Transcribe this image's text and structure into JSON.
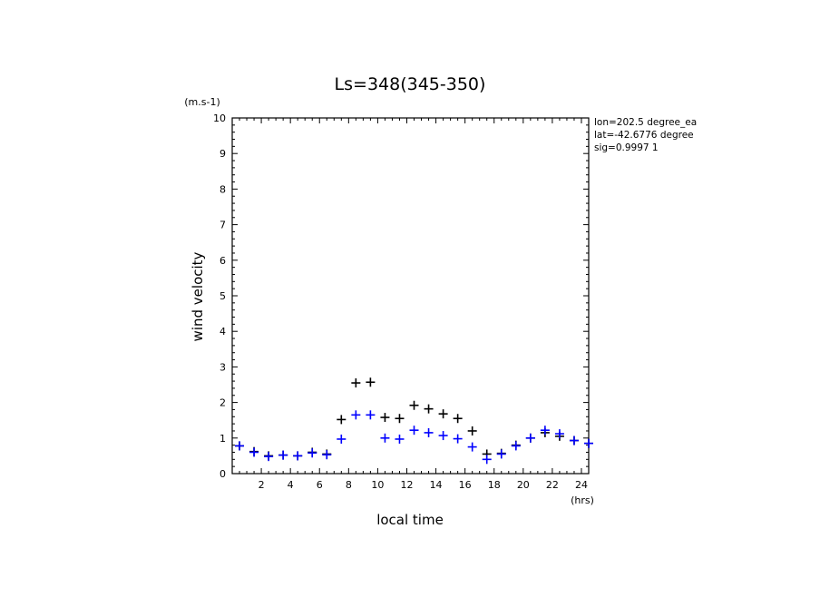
{
  "chart_data": {
    "type": "scatter",
    "title": "Ls=348(345-350)",
    "xlabel": "local time",
    "ylabel": "wind velocity",
    "x_unit": "(hrs)",
    "y_unit": "(m.s-1)",
    "xlim": [
      0,
      24.5
    ],
    "ylim": [
      0,
      10
    ],
    "x_ticks": [
      2,
      4,
      6,
      8,
      10,
      12,
      14,
      16,
      18,
      20,
      22,
      24
    ],
    "y_ticks": [
      0,
      1,
      2,
      3,
      4,
      5,
      6,
      7,
      8,
      9,
      10
    ],
    "annotations": [
      "lon=202.5 degree_ea",
      "lat=-42.6776 degree",
      "sig=0.9997 1"
    ],
    "series": [
      {
        "color": "#000000",
        "marker": "plus",
        "x": [
          0.5,
          1.5,
          2.5,
          3.5,
          4.5,
          5.5,
          6.5,
          7.5,
          8.5,
          9.5,
          10.5,
          11.5,
          12.5,
          13.5,
          14.5,
          15.5,
          16.5,
          17.5,
          18.5,
          19.5,
          20.5,
          21.5,
          22.5,
          23.5,
          24.5
        ],
        "y": [
          0.78,
          0.62,
          0.5,
          0.52,
          0.5,
          0.6,
          0.55,
          1.52,
          2.55,
          2.57,
          1.58,
          1.55,
          1.92,
          1.82,
          1.68,
          1.55,
          1.2,
          0.55,
          0.57,
          0.8,
          1.0,
          1.15,
          1.05,
          0.93,
          0.85
        ]
      },
      {
        "color": "#0000ff",
        "marker": "plus",
        "x": [
          0.5,
          1.5,
          2.5,
          3.5,
          4.5,
          5.5,
          6.5,
          7.5,
          8.5,
          9.5,
          10.5,
          11.5,
          12.5,
          13.5,
          14.5,
          15.5,
          16.5,
          17.5,
          18.5,
          19.5,
          20.5,
          21.5,
          22.5,
          23.5,
          24.5
        ],
        "y": [
          0.78,
          0.6,
          0.48,
          0.52,
          0.5,
          0.58,
          0.53,
          0.97,
          1.65,
          1.65,
          1.0,
          0.97,
          1.22,
          1.15,
          1.07,
          0.98,
          0.75,
          0.4,
          0.55,
          0.78,
          1.0,
          1.22,
          1.12,
          0.93,
          0.85
        ]
      }
    ]
  }
}
